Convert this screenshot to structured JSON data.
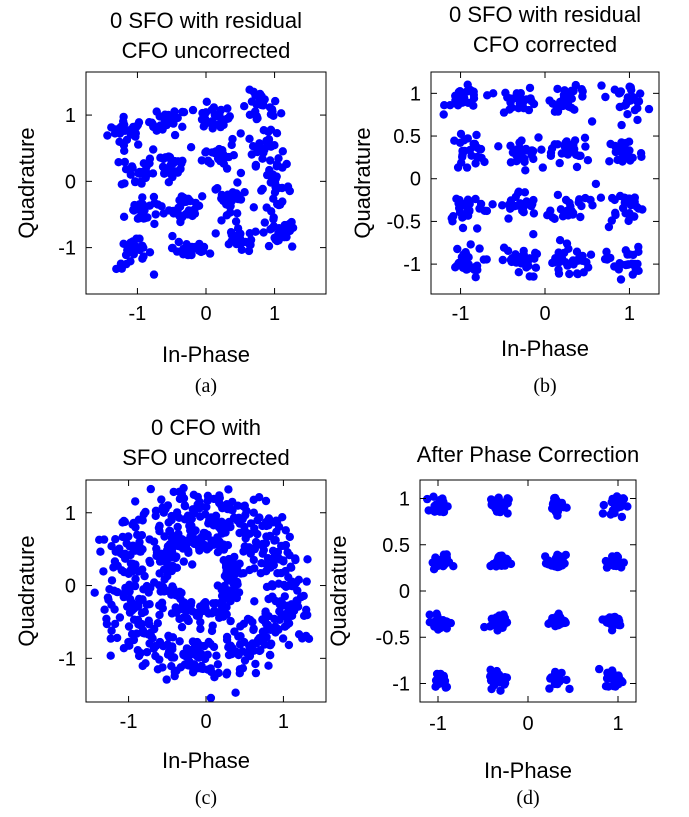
{
  "chart_data": [
    {
      "type": "scatter",
      "title": [
        "0 SFO with residual",
        "CFO uncorrected"
      ],
      "xlabel": "In-Phase",
      "ylabel": "Quadrature",
      "caption": "(a)",
      "xlim": [
        -1.75,
        1.75
      ],
      "ylim": [
        -1.7,
        1.65
      ],
      "xticks": [
        {
          "value": -1,
          "label": "-1"
        },
        {
          "value": 0,
          "label": "0"
        },
        {
          "value": 1,
          "label": "1"
        }
      ],
      "yticks": [
        {
          "value": -1,
          "label": "-1"
        },
        {
          "value": 0,
          "label": "0"
        },
        {
          "value": 1,
          "label": "1"
        }
      ],
      "series": [
        {
          "color": "#0000ff",
          "clusters": [
            [
              -1.15,
              0.75,
              0.14,
              0.11
            ],
            [
              -0.55,
              0.9,
              0.14,
              0.1
            ],
            [
              0.1,
              0.95,
              0.14,
              0.1
            ],
            [
              0.8,
              1.1,
              0.14,
              0.13
            ],
            [
              -1.0,
              0.15,
              0.12,
              0.13
            ],
            [
              -0.5,
              0.25,
              0.12,
              0.11
            ],
            [
              0.2,
              0.4,
              0.12,
              0.1
            ],
            [
              0.85,
              0.5,
              0.12,
              0.12
            ],
            [
              -0.95,
              -0.45,
              0.12,
              0.12
            ],
            [
              -0.3,
              -0.4,
              0.12,
              0.1
            ],
            [
              0.35,
              -0.25,
              0.12,
              0.1
            ],
            [
              1.0,
              -0.1,
              0.12,
              0.14
            ],
            [
              -1.05,
              -1.1,
              0.13,
              0.12
            ],
            [
              -0.2,
              -1.0,
              0.14,
              0.1
            ],
            [
              0.5,
              -0.9,
              0.14,
              0.09
            ],
            [
              1.05,
              -0.8,
              0.14,
              0.12
            ]
          ]
        }
      ]
    },
    {
      "type": "scatter",
      "title": [
        "0 SFO with residual",
        "CFO corrected"
      ],
      "xlabel": "In-Phase",
      "ylabel": "Quadrature",
      "caption": "(b)",
      "xlim": [
        -1.35,
        1.35
      ],
      "ylim": [
        -1.35,
        1.25
      ],
      "xticks": [
        {
          "value": -1,
          "label": "-1"
        },
        {
          "value": 0,
          "label": "0"
        },
        {
          "value": 1,
          "label": "1"
        }
      ],
      "yticks": [
        {
          "value": 1,
          "label": "1"
        },
        {
          "value": 0.5,
          "label": "0.5"
        },
        {
          "value": 0,
          "label": "0"
        },
        {
          "value": -0.5,
          "label": "-0.5"
        },
        {
          "value": -1,
          "label": "-1"
        }
      ],
      "series": [
        {
          "color": "#0000ff",
          "clusters": [
            [
              -0.95,
              0.93,
              0.11,
              0.07
            ],
            [
              -0.3,
              0.93,
              0.11,
              0.07
            ],
            [
              0.3,
              0.93,
              0.11,
              0.07
            ],
            [
              0.97,
              0.95,
              0.11,
              0.08
            ],
            [
              -0.9,
              0.3,
              0.11,
              0.1
            ],
            [
              -0.3,
              0.3,
              0.11,
              0.09
            ],
            [
              0.3,
              0.3,
              0.11,
              0.09
            ],
            [
              0.95,
              0.3,
              0.11,
              0.1
            ],
            [
              -0.95,
              -0.32,
              0.11,
              0.09
            ],
            [
              -0.3,
              -0.32,
              0.11,
              0.09
            ],
            [
              0.3,
              -0.32,
              0.11,
              0.09
            ],
            [
              0.95,
              -0.32,
              0.11,
              0.09
            ],
            [
              -0.95,
              -0.98,
              0.11,
              0.09
            ],
            [
              -0.3,
              -0.98,
              0.11,
              0.09
            ],
            [
              0.3,
              -0.98,
              0.11,
              0.09
            ],
            [
              0.95,
              -0.98,
              0.11,
              0.09
            ]
          ]
        }
      ]
    },
    {
      "type": "scatter",
      "title": [
        "0 CFO with",
        "SFO uncorrected"
      ],
      "xlabel": "In-Phase",
      "ylabel": "Quadrature",
      "caption": "(c)",
      "xlim": [
        -1.55,
        1.55
      ],
      "ylim": [
        -1.6,
        1.45
      ],
      "xticks": [
        {
          "value": -1,
          "label": "-1"
        },
        {
          "value": 0,
          "label": "0"
        },
        {
          "value": 1,
          "label": "1"
        }
      ],
      "yticks": [
        {
          "value": 1,
          "label": "1"
        },
        {
          "value": 0,
          "label": "0"
        },
        {
          "value": -1,
          "label": "-1"
        }
      ],
      "rings": [
        [
          0.0,
          0.0,
          1.05,
          1.05,
          0.18
        ],
        [
          -0.1,
          0.15,
          0.45,
          0.55,
          0.15
        ]
      ],
      "series": [
        {
          "color": "#0000ff",
          "clusters": []
        }
      ]
    },
    {
      "type": "scatter",
      "title": [
        "After Phase Correction"
      ],
      "xlabel": "In-Phase",
      "ylabel": "Quadrature",
      "caption": "(d)",
      "xlim": [
        -1.2,
        1.2
      ],
      "ylim": [
        -1.2,
        1.2
      ],
      "xticks": [
        {
          "value": -1,
          "label": "-1"
        },
        {
          "value": 0,
          "label": "0"
        },
        {
          "value": 1,
          "label": "1"
        }
      ],
      "yticks": [
        {
          "value": 1,
          "label": "1"
        },
        {
          "value": 0.5,
          "label": "0.5"
        },
        {
          "value": 0,
          "label": "0"
        },
        {
          "value": -0.5,
          "label": "-0.5"
        },
        {
          "value": -1,
          "label": "-1"
        }
      ],
      "series": [
        {
          "color": "#0000ff",
          "clusters": [
            [
              -0.97,
              0.93,
              0.05,
              0.05
            ],
            [
              -0.32,
              0.93,
              0.05,
              0.05
            ],
            [
              0.32,
              0.93,
              0.05,
              0.05
            ],
            [
              0.96,
              0.93,
              0.05,
              0.06
            ],
            [
              -0.97,
              0.31,
              0.05,
              0.04
            ],
            [
              -0.32,
              0.31,
              0.05,
              0.04
            ],
            [
              0.32,
              0.31,
              0.05,
              0.04
            ],
            [
              0.96,
              0.31,
              0.05,
              0.04
            ],
            [
              -0.97,
              -0.33,
              0.05,
              0.04
            ],
            [
              -0.32,
              -0.33,
              0.05,
              0.04
            ],
            [
              0.32,
              -0.33,
              0.05,
              0.04
            ],
            [
              0.96,
              -0.33,
              0.05,
              0.04
            ],
            [
              -0.97,
              -0.95,
              0.05,
              0.05
            ],
            [
              -0.32,
              -0.95,
              0.05,
              0.05
            ],
            [
              0.32,
              -0.95,
              0.05,
              0.05
            ],
            [
              0.96,
              -0.95,
              0.05,
              0.05
            ]
          ]
        }
      ]
    }
  ]
}
